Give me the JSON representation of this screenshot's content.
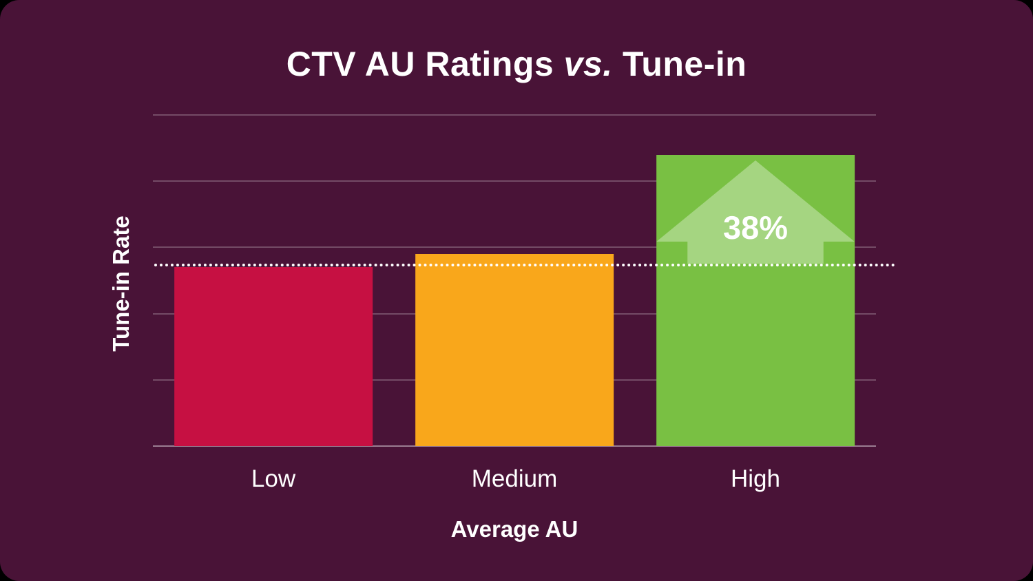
{
  "title": {
    "part1": "CTV AU Ratings ",
    "vs": "vs.",
    "part2": " Tune-in"
  },
  "chart_data": {
    "type": "bar",
    "title": "CTV AU Ratings vs. Tune-in",
    "xlabel": "Average AU",
    "ylabel": "Tune-in Rate",
    "categories": [
      "Low",
      "Medium",
      "High"
    ],
    "values": [
      54,
      58,
      88
    ],
    "bar_colors": [
      "#C61042",
      "#F9A71B",
      "#79C043"
    ],
    "ylim": [
      0,
      100
    ],
    "gridlines": [
      20,
      40,
      60,
      80,
      100
    ],
    "grid": true,
    "legend": "none",
    "baseline": {
      "value": 55,
      "style": "dotted",
      "color": "#FFFFFF"
    },
    "annotation": {
      "bar_index": 2,
      "label": "38%",
      "shape": "up-arrow",
      "fill": "rgba(255,255,255,0.33)"
    }
  },
  "colors": {
    "canvas_outer": "#000000",
    "card_background": "#491337",
    "gridline": "rgba(255,255,255,0.24)",
    "axis_line": "rgba(255,255,255,0.45)",
    "text": "#FFFFFF"
  }
}
